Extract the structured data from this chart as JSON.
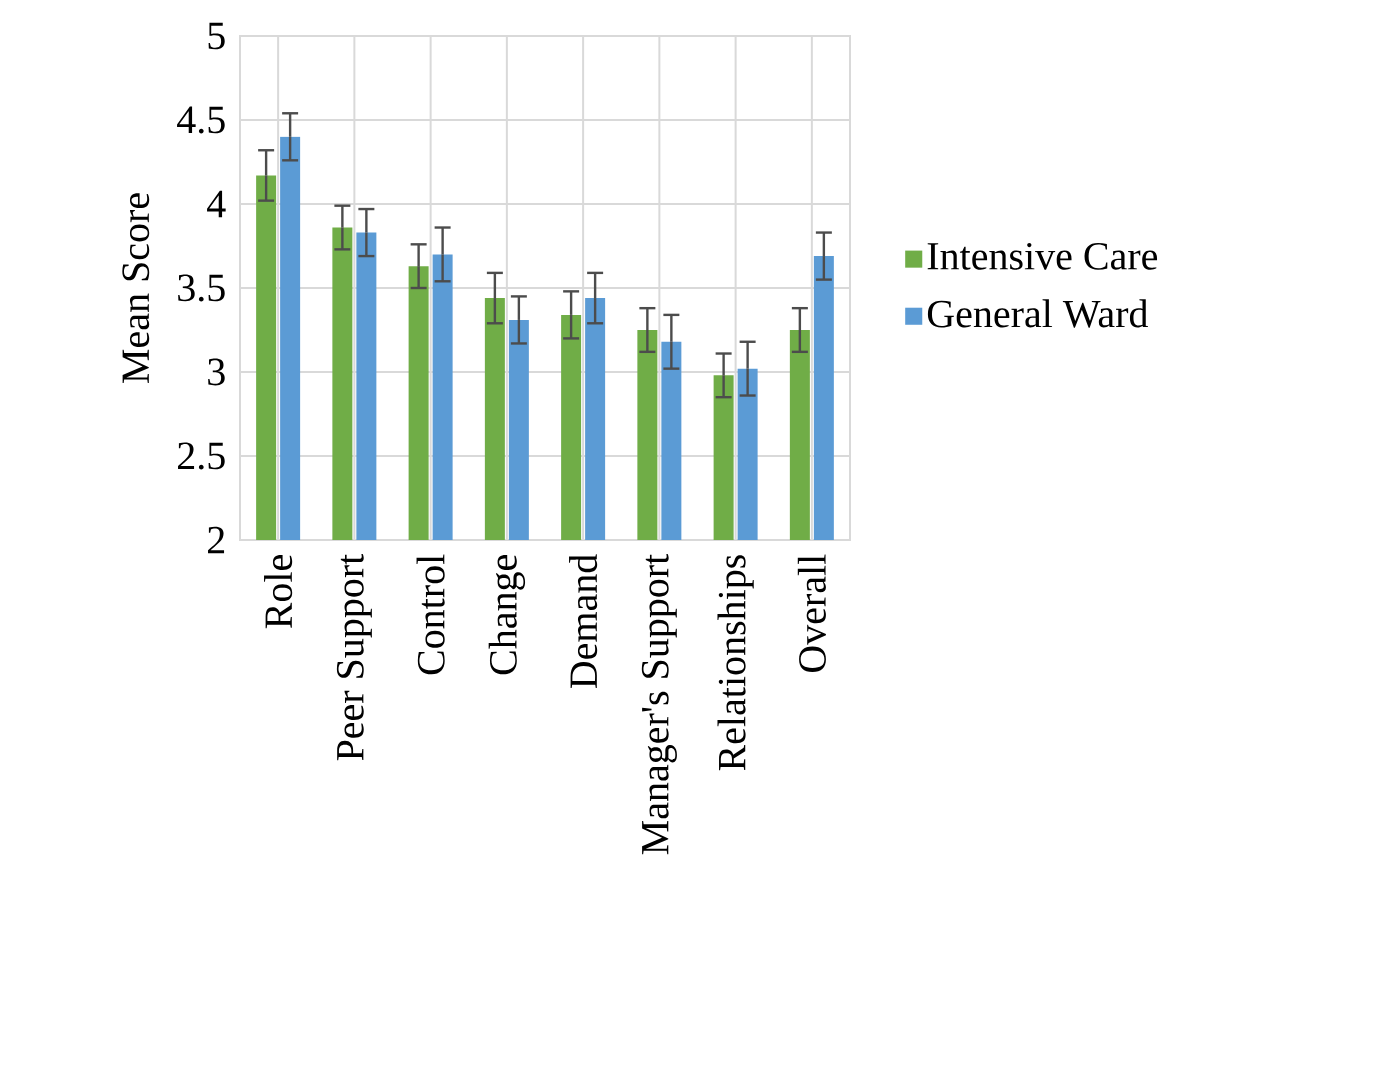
{
  "chart_data": {
    "type": "bar",
    "ylabel": "Mean Score",
    "categories": [
      "Role",
      "Peer Support",
      "Control",
      "Change",
      "Demand",
      "Manager's Support",
      "Relationships",
      "Overall"
    ],
    "series": [
      {
        "name": "Intensive Care",
        "color": "#70ad47",
        "values": [
          4.17,
          3.86,
          3.63,
          3.44,
          3.34,
          3.25,
          2.98,
          3.25
        ],
        "errors": [
          0.15,
          0.13,
          0.13,
          0.15,
          0.14,
          0.13,
          0.13,
          0.13
        ]
      },
      {
        "name": "General Ward",
        "color": "#5b9bd5",
        "values": [
          4.4,
          3.83,
          3.7,
          3.31,
          3.44,
          3.18,
          3.02,
          3.69
        ],
        "errors": [
          0.14,
          0.14,
          0.16,
          0.14,
          0.15,
          0.16,
          0.16,
          0.14
        ]
      }
    ],
    "ylim": [
      2,
      5
    ],
    "yticks": [
      2,
      2.5,
      3,
      3.5,
      4,
      4.5,
      5
    ],
    "grid": true,
    "legend": "right"
  }
}
